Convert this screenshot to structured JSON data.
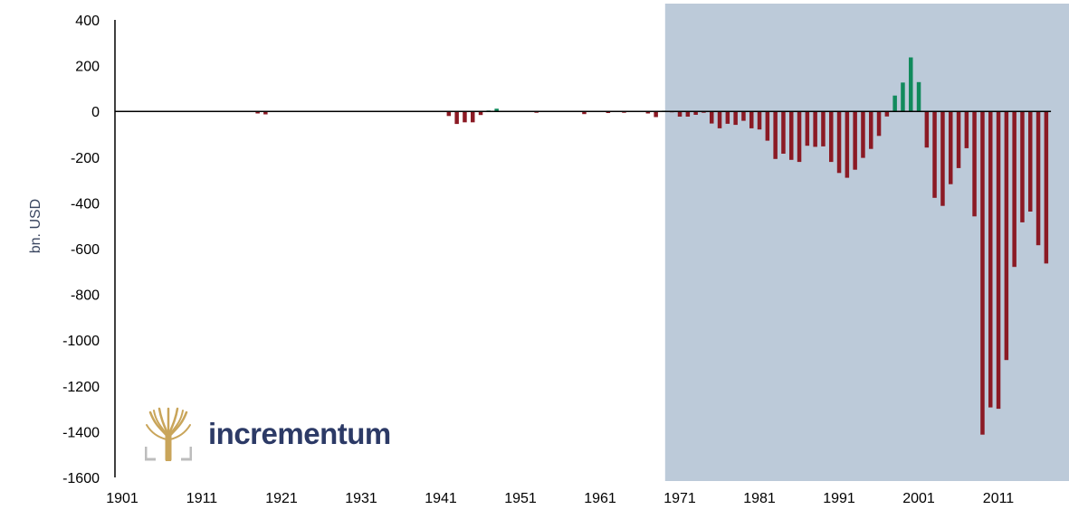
{
  "chart_data": {
    "type": "bar",
    "ylabel": "bn. USD",
    "ylim": [
      -1600,
      400
    ],
    "yticks": [
      400,
      200,
      0,
      -200,
      -400,
      -600,
      -800,
      -1000,
      -1200,
      -1400,
      -1600
    ],
    "xlim": [
      1901,
      2018
    ],
    "xticks": [
      "1901",
      "1911",
      "1921",
      "1931",
      "1941",
      "1951",
      "1961",
      "1971",
      "1981",
      "1991",
      "2001",
      "2011"
    ],
    "shaded_region": {
      "from": 1969.5,
      "to": 2018,
      "color": "#bccad9"
    },
    "colors": {
      "deficit": "#8b1a24",
      "surplus": "#118a5c",
      "axis": "#000000"
    },
    "x": [
      1918,
      1919,
      1942,
      1943,
      1944,
      1945,
      1946,
      1947,
      1948,
      1953,
      1959,
      1962,
      1964,
      1967,
      1968,
      1969,
      1970,
      1971,
      1972,
      1973,
      1974,
      1975,
      1976,
      1977,
      1978,
      1979,
      1980,
      1981,
      1982,
      1983,
      1984,
      1985,
      1986,
      1987,
      1988,
      1989,
      1990,
      1991,
      1992,
      1993,
      1994,
      1995,
      1996,
      1997,
      1998,
      1999,
      2000,
      2001,
      2002,
      2003,
      2004,
      2005,
      2006,
      2007,
      2008,
      2009,
      2010,
      2011,
      2012,
      2013,
      2014,
      2015,
      2016,
      2017
    ],
    "values": [
      -9,
      -13,
      -20,
      -55,
      -48,
      -48,
      -16,
      4,
      12,
      -6,
      -12,
      -7,
      -6,
      -9,
      -25,
      3,
      -3,
      -23,
      -23,
      -15,
      -6,
      -53,
      -74,
      -54,
      -59,
      -41,
      -74,
      -79,
      -128,
      -208,
      -185,
      -212,
      -221,
      -150,
      -155,
      -153,
      -221,
      -269,
      -290,
      -255,
      -203,
      -164,
      -107,
      -22,
      69,
      126,
      236,
      128,
      -158,
      -378,
      -413,
      -318,
      -248,
      -161,
      -459,
      -1413,
      -1294,
      -1300,
      -1087,
      -680,
      -485,
      -438,
      -585,
      -665
    ]
  },
  "logo": {
    "name": "incrementum",
    "text": "incrementum"
  }
}
